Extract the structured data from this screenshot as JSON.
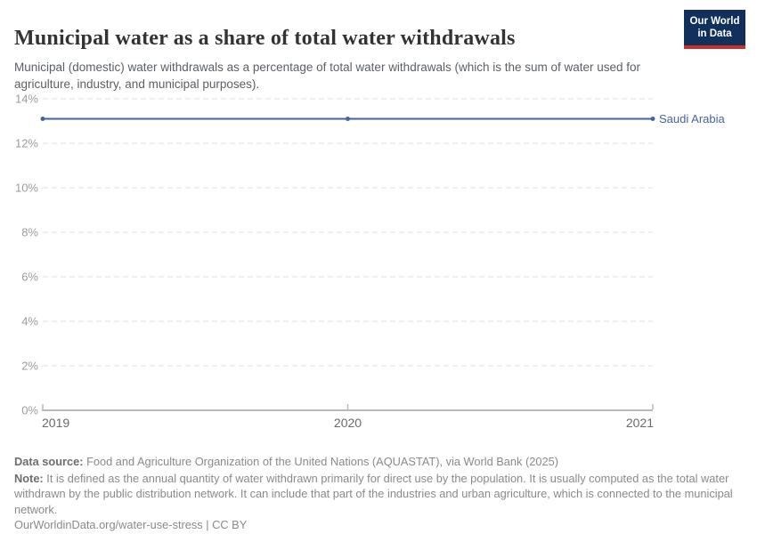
{
  "header": {
    "title": "Municipal water as a share of total water withdrawals",
    "subtitle": "Municipal (domestic) water withdrawals as a percentage of total water withdrawals (which is the sum of water used for agriculture, industry, and municipal purposes).",
    "logo_line1": "Our World",
    "logo_line2": "in Data"
  },
  "chart_data": {
    "type": "line",
    "title": "Municipal water as a share of total water withdrawals",
    "x": [
      2019,
      2020,
      2021
    ],
    "series": [
      {
        "name": "Saudi Arabia",
        "values": [
          13.1,
          13.1,
          13.1
        ],
        "color": "#4463a7"
      }
    ],
    "xlabel": "",
    "ylabel": "",
    "ylim": [
      0,
      14
    ],
    "yticks": [
      0,
      2,
      4,
      6,
      8,
      10,
      12,
      14
    ],
    "ytick_format": "{}%",
    "grid": "horizontal-dashed",
    "legend": "end-of-line-label",
    "markers": "dots-at-data-points"
  },
  "footer": {
    "datasource_label": "Data source:",
    "datasource_text": " Food and Agriculture Organization of the United Nations (AQUASTAT), via World Bank (2025)",
    "note_label": "Note:",
    "note_text": " It is defined as the annual quantity of water withdrawn primarily for direct use by the population. It is usually computed as the total water withdrawn by the public distribution network. It can include that part of the industries and urban agriculture, which is connected to the municipal network.",
    "link_text": "OurWorldinData.org/water-use-stress | CC BY"
  },
  "colors": {
    "accent_line": "#4463a7",
    "grid": "#e0e0e0",
    "axis": "#b9b9b9",
    "y_tick_label": "#9c9c9c",
    "x_tick_label": "#6b6b6b",
    "logo_navy": "#12305c",
    "logo_red": "#c8302a",
    "title_text": "#333333",
    "subtitle_text": "#5b6066",
    "footer_text": "#8a8a8a"
  }
}
